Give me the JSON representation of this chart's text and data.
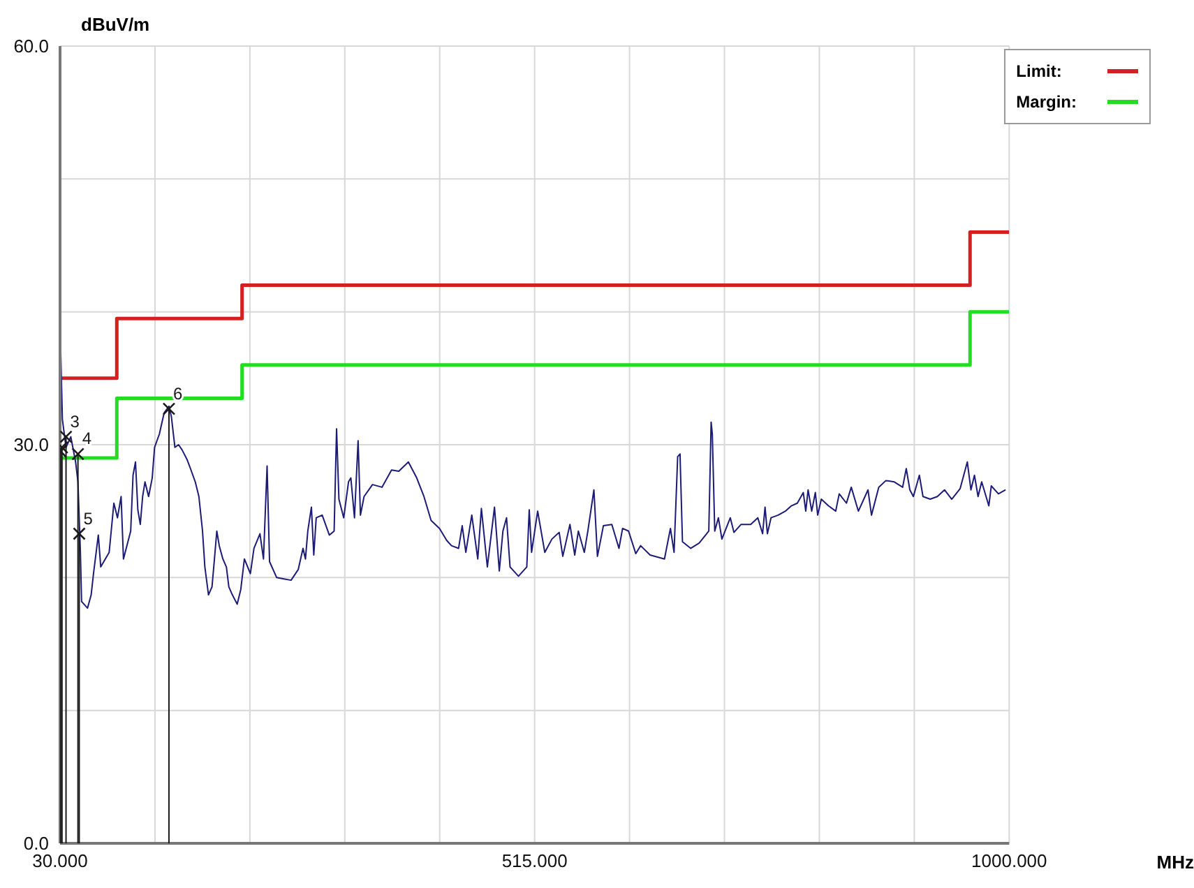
{
  "chart_data": {
    "type": "line",
    "ylabel": "dBuV/m",
    "annotations": [
      "MHz",
      {
        "text": "3",
        "x": 36.1,
        "y": 30.6
      },
      {
        "text": "4",
        "x": 48.3,
        "y": 29.3
      },
      {
        "text": "5",
        "x": 49.6,
        "y": 23.3
      },
      {
        "text": "6",
        "x": 141.3,
        "y": 32.7
      }
    ],
    "xlim": [
      30,
      1000
    ],
    "xticks": [
      {
        "value": 30,
        "label": "30.000"
      },
      {
        "value": 127,
        "label": null
      },
      {
        "value": 224,
        "label": null
      },
      {
        "value": 321,
        "label": null
      },
      {
        "value": 418,
        "label": null
      },
      {
        "value": 515,
        "label": "515.000"
      },
      {
        "value": 612,
        "label": null
      },
      {
        "value": 709,
        "label": null
      },
      {
        "value": 806,
        "label": null
      },
      {
        "value": 903,
        "label": null
      },
      {
        "value": 1000,
        "label": "1000.000"
      }
    ],
    "ylim": [
      0,
      60
    ],
    "yticks": [
      {
        "value": 0,
        "label": "0.0"
      },
      {
        "value": 10,
        "label": null
      },
      {
        "value": 20,
        "label": null
      },
      {
        "value": 30,
        "label": "30.0"
      },
      {
        "value": 40,
        "label": null
      },
      {
        "value": 50,
        "label": null
      },
      {
        "value": 60,
        "label": "60.0"
      }
    ],
    "grid": true,
    "legend": "top right",
    "series": [
      {
        "name": "Limit:",
        "type": "step",
        "color": "#d42020",
        "x": [
          30,
          88,
          216,
          960,
          1000
        ],
        "values": [
          35,
          39.5,
          42,
          46,
          46
        ]
      },
      {
        "name": "Margin:",
        "type": "step",
        "color": "#22dd22",
        "x": [
          30,
          88,
          216,
          960,
          1000
        ],
        "values": [
          29,
          33.5,
          36,
          40,
          40
        ]
      },
      {
        "color": "#1c1c78",
        "x": [
          30,
          32.4,
          36.1,
          41.0,
          45.9,
          48.3,
          50.8,
          52.0,
          58.1,
          61.8,
          64.2,
          69.1,
          71.6,
          80.2,
          85.0,
          88.7,
          92.4,
          94.8,
          102.2,
          104.6,
          107.1,
          109.5,
          112.0,
          114.4,
          116.8,
          120.5,
          124.2,
          126.6,
          131.5,
          136.4,
          141.3,
          143.8,
          147.4,
          151.1,
          154.8,
          159.7,
          163.3,
          168.2,
          171.9,
          175.6,
          178.0,
          181.7,
          185.3,
          187.8,
          190.2,
          192.7,
          196.4,
          200.0,
          202.5,
          206.1,
          211.0,
          214.7,
          218.4,
          224.5,
          228.2,
          234.3,
          237.9,
          241.6,
          244.1,
          251.4,
          258.7,
          266.1,
          273.4,
          278.3,
          280.8,
          283.2,
          286.9,
          289.3,
          291.8,
          297.9,
          305.2,
          310.1,
          312.6,
          315.0,
          319.9,
          324.8,
          327.2,
          330.9,
          334.6,
          337.0,
          340.7,
          349.3,
          359.0,
          368.8,
          376.2,
          386.0,
          394.5,
          401.9,
          409.2,
          417.8,
          425.1,
          430.0,
          437.3,
          441.0,
          444.7,
          450.8,
          456.9,
          460.6,
          466.7,
          474.0,
          478.9,
          482.6,
          486.3,
          489.9,
          498.5,
          507.0,
          509.5,
          511.9,
          518.1,
          525.4,
          532.7,
          540.1,
          543.8,
          551.1,
          556.0,
          559.7,
          565.8,
          569.4,
          575.6,
          579.2,
          585.3,
          593.9,
          601.2,
          604.9,
          611.0,
          618.4,
          623.3,
          633.0,
          647.7,
          653.8,
          657.5,
          661.2,
          663.6,
          666.1,
          674.6,
          683.2,
          693.0,
          695.4,
          696.6,
          699.1,
          702.8,
          706.4,
          715.0,
          718.7,
          726.0,
          735.8,
          743.1,
          748.0,
          750.5,
          752.9,
          756.6,
          763.9,
          771.3,
          777.4,
          783.5,
          789.6,
          792.1,
          794.5,
          798.2,
          801.9,
          804.3,
          808.0,
          815.3,
          822.7,
          826.3,
          833.7,
          838.6,
          845.9,
          855.7,
          859.3,
          866.7,
          874.0,
          882.6,
          891.1,
          894.8,
          898.5,
          902.1,
          908.2,
          911.9,
          919.3,
          926.6,
          933.9,
          941.3,
          949.9,
          957.2,
          960.9,
          964.5,
          968.2,
          971.9,
          979.2,
          981.7,
          989.0,
          996.3
        ],
        "values": [
          39.1,
          31.9,
          29.8,
          30.6,
          28.7,
          27.2,
          21.9,
          18.2,
          17.7,
          18.7,
          20.3,
          23.2,
          20.8,
          21.9,
          25.6,
          24.5,
          26.1,
          21.4,
          23.5,
          27.7,
          28.7,
          25.1,
          24.0,
          26.1,
          27.2,
          26.1,
          27.5,
          29.8,
          30.8,
          32.4,
          32.9,
          32.1,
          29.8,
          30.0,
          29.6,
          28.9,
          28.2,
          27.2,
          26.1,
          23.5,
          20.8,
          18.7,
          19.3,
          21.4,
          23.5,
          22.4,
          21.4,
          20.8,
          19.3,
          18.7,
          18.0,
          19.1,
          21.4,
          20.3,
          22.2,
          23.3,
          21.4,
          28.4,
          21.2,
          20.0,
          19.9,
          19.8,
          20.6,
          22.2,
          21.4,
          23.5,
          25.3,
          21.7,
          24.5,
          24.7,
          23.2,
          23.5,
          31.2,
          25.9,
          24.5,
          27.2,
          27.5,
          24.5,
          30.3,
          24.7,
          26.1,
          27.0,
          26.8,
          28.1,
          28.0,
          28.7,
          27.5,
          26.1,
          24.3,
          23.7,
          22.8,
          22.4,
          22.2,
          23.9,
          21.9,
          24.7,
          21.4,
          25.2,
          20.8,
          25.3,
          20.5,
          23.5,
          24.5,
          20.8,
          20.1,
          20.8,
          25.1,
          21.9,
          25.0,
          21.9,
          22.9,
          23.4,
          21.6,
          24.0,
          21.7,
          23.5,
          21.9,
          23.5,
          26.6,
          21.6,
          23.9,
          24.0,
          22.2,
          23.7,
          23.5,
          21.8,
          22.4,
          21.7,
          21.4,
          23.7,
          21.9,
          29.1,
          29.3,
          22.7,
          22.2,
          22.6,
          23.5,
          31.7,
          30.8,
          23.5,
          24.5,
          22.9,
          24.5,
          23.4,
          24.0,
          24.0,
          24.5,
          23.3,
          25.3,
          23.3,
          24.5,
          24.7,
          25.0,
          25.4,
          25.6,
          26.4,
          25.0,
          26.6,
          25.0,
          26.4,
          24.7,
          25.9,
          25.4,
          25.0,
          26.3,
          25.6,
          26.8,
          25.0,
          26.6,
          24.7,
          26.8,
          27.3,
          27.2,
          26.8,
          28.2,
          26.6,
          26.1,
          27.7,
          26.1,
          25.9,
          26.1,
          26.6,
          25.9,
          26.7,
          28.7,
          26.6,
          27.7,
          26.1,
          27.2,
          25.4,
          26.9,
          26.3,
          26.6
        ]
      },
      {
        "type": "scatter",
        "marker": "cross",
        "color": "#1a1a1a",
        "x": [
          30.5,
          32,
          36.1,
          48.3,
          49.6,
          141.3
        ],
        "values": [
          29.5,
          29.8,
          30.6,
          29.3,
          23.3,
          32.7
        ]
      }
    ]
  }
}
